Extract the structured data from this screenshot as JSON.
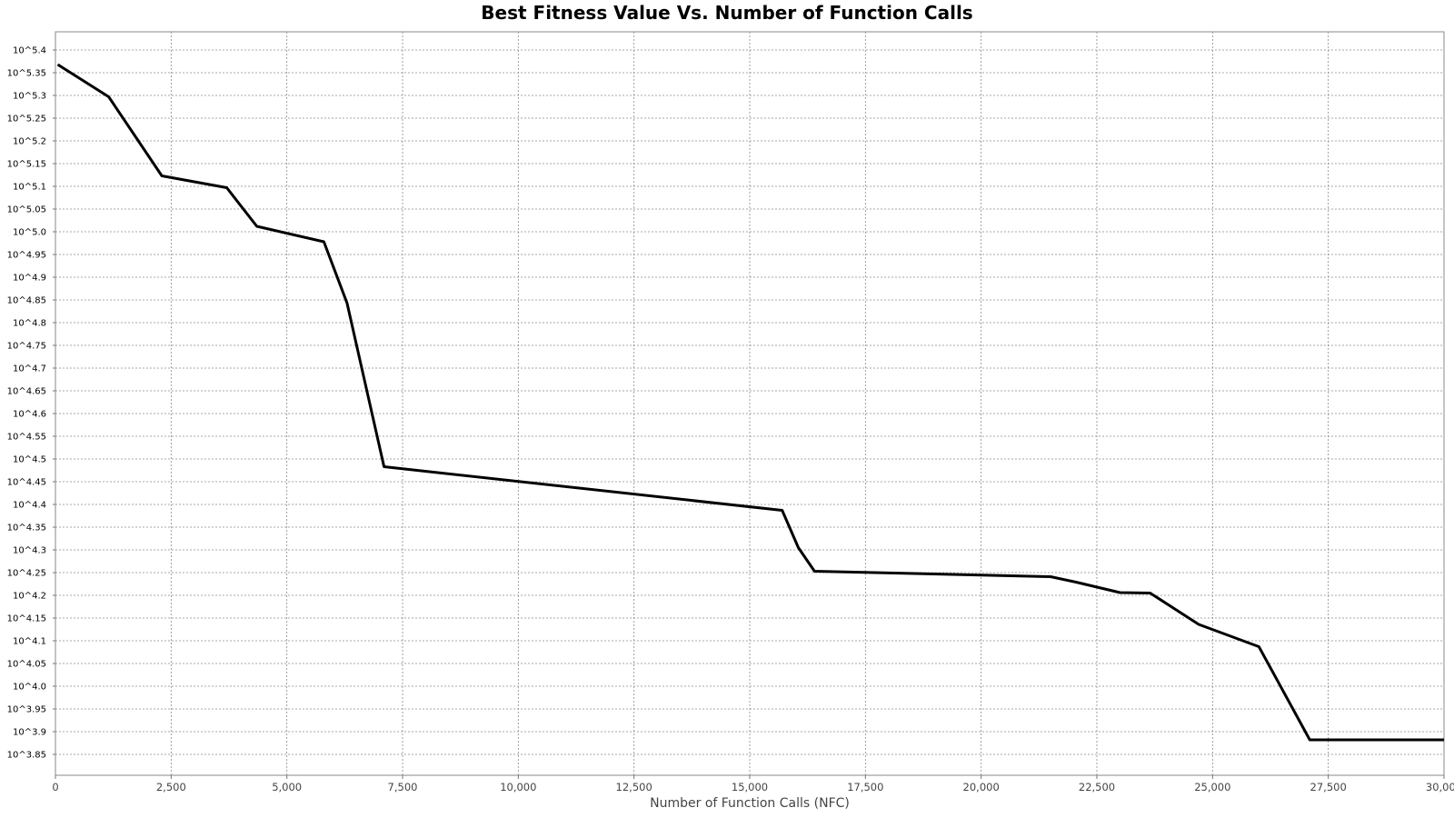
{
  "chart_data": {
    "type": "line",
    "title": "Best Fitness Value Vs. Number of Function Calls",
    "xlabel": "Number of Function Calls (NFC)",
    "ylabel": "",
    "xlim": [
      0,
      30000
    ],
    "ylim": [
      3.8,
      5.44
    ],
    "y_scale": "log10",
    "grid": true,
    "legend": "none",
    "line_color": "#000000",
    "x_ticks": [
      0,
      2500,
      5000,
      7500,
      10000,
      12500,
      15000,
      17500,
      20000,
      22500,
      25000,
      27500,
      30000
    ],
    "x_tick_labels": [
      "0",
      "2,500",
      "5,000",
      "7,500",
      "10,000",
      "12,500",
      "15,000",
      "17,500",
      "20,000",
      "22,500",
      "25,000",
      "27,500",
      "30,000"
    ],
    "y_ticks": [
      3.85,
      3.9,
      3.95,
      4.0,
      4.05,
      4.1,
      4.15,
      4.2,
      4.25,
      4.3,
      4.35,
      4.4,
      4.45,
      4.5,
      4.55,
      4.6,
      4.65,
      4.7,
      4.75,
      4.8,
      4.85,
      4.9,
      4.95,
      5.0,
      5.05,
      5.1,
      5.15,
      5.2,
      5.25,
      5.3,
      5.35,
      5.4
    ],
    "y_tick_labels": [
      "10^3.85",
      "10^3.9",
      "10^3.95",
      "10^4.0",
      "10^4.05",
      "10^4.1",
      "10^4.15",
      "10^4.2",
      "10^4.25",
      "10^4.3",
      "10^4.35",
      "10^4.4",
      "10^4.45",
      "10^4.5",
      "10^4.55",
      "10^4.6",
      "10^4.65",
      "10^4.7",
      "10^4.75",
      "10^4.8",
      "10^4.85",
      "10^4.9",
      "10^4.95",
      "10^5.0",
      "10^5.05",
      "10^5.1",
      "10^5.15",
      "10^5.2",
      "10^5.25",
      "10^5.3",
      "10^5.35",
      "10^5.4"
    ],
    "series": [
      {
        "x": [
          50,
          1150,
          2300,
          3700,
          4350,
          5800,
          6300,
          7100,
          15700,
          16050,
          16400,
          21500,
          22050,
          23000,
          23650,
          24700,
          26000,
          27100,
          30000
        ],
        "y": [
          5.368,
          5.297,
          5.123,
          5.097,
          5.012,
          4.978,
          4.843,
          4.483,
          4.387,
          4.305,
          4.253,
          4.241,
          4.229,
          4.206,
          4.205,
          4.136,
          4.087,
          3.882,
          3.882
        ]
      }
    ]
  }
}
